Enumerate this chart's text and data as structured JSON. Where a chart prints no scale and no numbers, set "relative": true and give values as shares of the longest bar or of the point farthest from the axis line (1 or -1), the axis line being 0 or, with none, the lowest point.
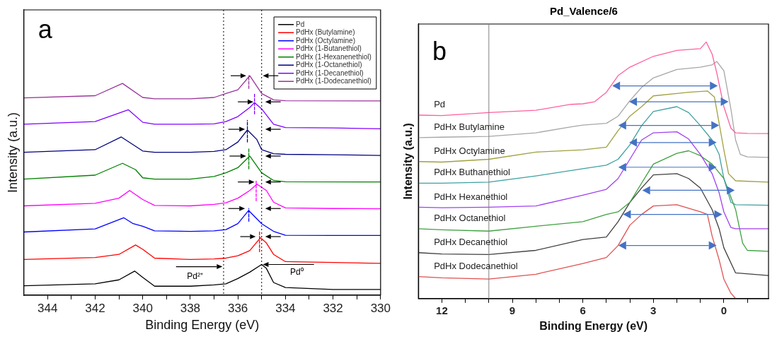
{
  "chart_data": [
    {
      "type": "line",
      "relative": true,
      "xlabel": "Binding Energy (eV)",
      "ylabel": "Intensity (a.u.)",
      "xlim": [
        345,
        330
      ],
      "xticks": [
        344,
        {
          "value": 343,
          "label": null
        },
        342,
        {
          "value": 341,
          "label": null
        },
        340,
        {
          "value": 339,
          "label": null
        },
        338,
        {
          "value": 337,
          "label": null
        },
        336,
        {
          "value": 335,
          "label": null
        },
        334,
        {
          "value": 333,
          "label": null
        },
        332,
        {
          "value": 331,
          "label": null
        },
        330
      ],
      "tick_labels": "x",
      "legend": "top right",
      "annotations": [
        "a",
        "Pd²⁺",
        "Pd⁰"
      ],
      "ref_lines": [
        {
          "axis": "x",
          "value": 336.6,
          "color": "#000000",
          "line_style": "dotted"
        },
        {
          "axis": "x",
          "value": 335,
          "color": "#000000",
          "line_style": "dotted"
        }
      ],
      "series": [
        {
          "name": "Pd",
          "color": "#000000",
          "x": [
            345,
            342,
            341,
            340.34,
            340,
            339.5,
            338,
            337,
            336.5,
            336,
            335.5,
            335,
            334.8,
            334.5,
            334,
            332,
            330
          ],
          "values": [
            0.043,
            0.052,
            0.07,
            0.11,
            0.081,
            0.041,
            0.041,
            0.047,
            0.052,
            0.076,
            0.105,
            0.14,
            0.122,
            0.058,
            0.035,
            0.026,
            0.026
          ]
        },
        {
          "name": "PdHx (Butylamine)",
          "color": "#ff0000",
          "x": [
            345,
            342,
            341,
            340.3,
            340,
            339.5,
            338,
            337,
            336.5,
            336,
            335.5,
            335.05,
            334.8,
            334.5,
            334,
            332,
            330
          ],
          "values": [
            0.163,
            0.172,
            0.186,
            0.229,
            0.209,
            0.169,
            0.163,
            0.165,
            0.169,
            0.18,
            0.203,
            0.262,
            0.238,
            0.186,
            0.153,
            0.149,
            0.145
          ]
        },
        {
          "name": "PdHx (Octylamine)",
          "color": "#0000ff",
          "x": [
            345,
            342,
            340.8,
            340.4,
            340,
            339.5,
            338,
            337,
            336.5,
            336,
            335.55,
            335,
            334.5,
            334,
            332,
            330
          ],
          "values": [
            0.288,
            0.302,
            0.353,
            0.326,
            0.314,
            0.293,
            0.291,
            0.293,
            0.299,
            0.326,
            0.386,
            0.326,
            0.291,
            0.273,
            0.272,
            0.272
          ]
        },
        {
          "name": "PdHx (1-Butanethiol)",
          "color": "#ff00ff",
          "x": [
            345,
            342,
            341,
            340.55,
            340,
            339.5,
            338,
            337,
            336.5,
            336,
            335.5,
            335.2,
            334.8,
            334.5,
            334,
            332,
            330
          ],
          "values": [
            0.407,
            0.419,
            0.442,
            0.477,
            0.436,
            0.409,
            0.407,
            0.414,
            0.421,
            0.442,
            0.477,
            0.506,
            0.477,
            0.424,
            0.398,
            0.395,
            0.394
          ]
        },
        {
          "name": "PdHx (1-Hexanenethiol)",
          "color": "#008000",
          "x": [
            345,
            342,
            340.85,
            340.3,
            340,
            339.5,
            338,
            337,
            336.5,
            336,
            335.5,
            335,
            334.5,
            334,
            330
          ],
          "values": [
            0.529,
            0.547,
            0.601,
            0.572,
            0.535,
            0.529,
            0.529,
            0.541,
            0.558,
            0.581,
            0.634,
            0.558,
            0.523,
            0.517,
            0.516
          ]
        },
        {
          "name": "PdHx (1-Octanethiol)",
          "color": "#000080",
          "x": [
            345,
            342,
            340.9,
            340,
            339.5,
            338,
            337,
            336.5,
            336,
            335.6,
            335.2,
            335,
            334.5,
            334,
            332,
            330
          ],
          "values": [
            0.651,
            0.663,
            0.721,
            0.657,
            0.651,
            0.651,
            0.655,
            0.663,
            0.698,
            0.753,
            0.709,
            0.663,
            0.645,
            0.642,
            0.64,
            0.637
          ]
        },
        {
          "name": "PdHx (1-Decanethiol)",
          "color": "#8000ff",
          "x": [
            345,
            342,
            340.6,
            340,
            339.5,
            338,
            337,
            336.5,
            336,
            335.5,
            335.3,
            335,
            334.5,
            334,
            332,
            330
          ],
          "values": [
            0.779,
            0.791,
            0.845,
            0.788,
            0.779,
            0.779,
            0.781,
            0.791,
            0.814,
            0.855,
            0.878,
            0.849,
            0.779,
            0.764,
            0.762,
            0.758
          ]
        },
        {
          "name": "PdHx (1-Dodecanethiol)",
          "color": "#993399",
          "x": [
            345,
            342,
            340.85,
            340,
            339.5,
            338,
            337,
            336.5,
            336,
            335.5,
            335,
            334.5,
            334,
            330
          ],
          "values": [
            0.899,
            0.909,
            0.965,
            0.901,
            0.895,
            0.895,
            0.901,
            0.919,
            0.936,
            1.0,
            0.919,
            0.89,
            0.886,
            0.885
          ]
        },
        {
          "color": "#ff0000",
          "line_style": "dashed",
          "x": [
            335.09,
            335.09
          ],
          "values": [
            0.198,
            0.29
          ]
        },
        {
          "color": "#0000ff",
          "line_style": "dashed",
          "x": [
            335.54,
            335.54
          ],
          "values": [
            0.337,
            0.395
          ]
        },
        {
          "color": "#ff00ff",
          "line_style": "dashed",
          "x": [
            335.23,
            335.23
          ],
          "values": [
            0.43,
            0.523
          ]
        },
        {
          "color": "#008000",
          "line_style": "dashed",
          "x": [
            335.54,
            335.54
          ],
          "values": [
            0.576,
            0.669
          ]
        },
        {
          "color": "#000080",
          "line_style": "dashed",
          "x": [
            335.6,
            335.6
          ],
          "values": [
            0.698,
            0.797
          ]
        },
        {
          "color": "#8000ff",
          "line_style": "dashed",
          "x": [
            335.3,
            335.3
          ],
          "values": [
            0.826,
            0.921
          ]
        },
        {
          "color": "#993399",
          "line_style": "dashed",
          "x": [
            335.54,
            335.54
          ],
          "values": [
            0.942,
            1.0
          ]
        }
      ]
    },
    {
      "type": "line",
      "relative": true,
      "title": "Pd_Valence/6",
      "xlabel": "Binding Energy (eV)",
      "ylabel": "Intensity (a.u.)",
      "xlim": [
        13,
        -1.9
      ],
      "xticks": [
        12,
        {
          "value": 11,
          "label": null
        },
        {
          "value": 10,
          "label": null
        },
        9,
        {
          "value": 8,
          "label": null
        },
        {
          "value": 7,
          "label": null
        },
        6,
        {
          "value": 5,
          "label": null
        },
        {
          "value": 4,
          "label": null
        },
        3,
        {
          "value": 2,
          "label": null
        },
        {
          "value": 1,
          "label": null
        },
        0,
        {
          "value": -1,
          "label": null
        }
      ],
      "tick_labels": "x",
      "annotations": [
        "b"
      ],
      "ref_lines": [
        {
          "axis": "x",
          "value": 10,
          "color": "#808080"
        }
      ],
      "series": [
        {
          "name": "Pd",
          "color": "#ff5fa0",
          "x": [
            13,
            12,
            10,
            8,
            6.5,
            6,
            5.5,
            5,
            4.5,
            4,
            3,
            2,
            1,
            0.75,
            0.5,
            0.3,
            0,
            -0.3,
            -0.5,
            -1,
            -1.9
          ],
          "values": [
            0.715,
            0.713,
            0.725,
            0.734,
            0.757,
            0.759,
            0.767,
            0.804,
            0.869,
            0.902,
            0.944,
            0.967,
            0.974,
            1.0,
            0.953,
            0.879,
            0.748,
            0.664,
            0.646,
            0.644,
            0.643
          ]
        },
        {
          "name": "PdHx Butylamine",
          "color": "#a6a6a6",
          "x": [
            13,
            12,
            10,
            8,
            6.5,
            6,
            5,
            4.5,
            4,
            3.5,
            3,
            2,
            1,
            0.5,
            0.3,
            0,
            -0.3,
            -0.5,
            -0.7,
            -1,
            -1.9
          ],
          "values": [
            0.627,
            0.629,
            0.632,
            0.646,
            0.669,
            0.676,
            0.683,
            0.711,
            0.771,
            0.823,
            0.86,
            0.893,
            0.902,
            0.911,
            0.924,
            0.888,
            0.739,
            0.618,
            0.562,
            0.552,
            0.55
          ]
        },
        {
          "name": "PdHx Octylamine",
          "color": "#a0a040",
          "x": [
            13,
            12,
            10,
            8,
            6,
            5,
            4.5,
            4,
            3.5,
            3,
            2,
            1.5,
            0.7,
            0.4,
            0,
            -0.2,
            -0.5,
            -1.9
          ],
          "values": [
            0.534,
            0.532,
            0.543,
            0.571,
            0.58,
            0.59,
            0.655,
            0.711,
            0.748,
            0.79,
            0.799,
            0.804,
            0.809,
            0.785,
            0.58,
            0.487,
            0.459,
            0.454
          ]
        },
        {
          "name": "PdHx Buthanethiol",
          "color": "#3fa0a0",
          "x": [
            13,
            12,
            10,
            8,
            6,
            5,
            4.5,
            4,
            3.5,
            3,
            2,
            1.5,
            1,
            0.5,
            0.2,
            0,
            -0.3,
            -0.5,
            -1.9
          ],
          "values": [
            0.45,
            0.45,
            0.454,
            0.478,
            0.506,
            0.52,
            0.543,
            0.599,
            0.674,
            0.729,
            0.748,
            0.725,
            0.674,
            0.618,
            0.562,
            0.468,
            0.375,
            0.366,
            0.364
          ]
        },
        {
          "name": "PdHx Hexanethiol",
          "color": "#a040f0",
          "x": [
            13,
            12,
            10,
            8,
            6,
            5,
            4.5,
            4,
            3.5,
            3,
            2,
            1.5,
            1,
            0.5,
            0.2,
            0,
            -0.3,
            -0.5,
            -1.9
          ],
          "values": [
            0.356,
            0.354,
            0.356,
            0.361,
            0.403,
            0.426,
            0.468,
            0.543,
            0.618,
            0.646,
            0.65,
            0.622,
            0.562,
            0.487,
            0.412,
            0.338,
            0.277,
            0.272,
            0.272
          ]
        },
        {
          "name": "PdHx Octanethiol",
          "color": "#40a040",
          "x": [
            13,
            12,
            10,
            8,
            6,
            5,
            4.5,
            4,
            3.5,
            3,
            2,
            1.5,
            1,
            0.5,
            0,
            -0.5,
            -0.8,
            -1,
            -1.9
          ],
          "values": [
            0.272,
            0.268,
            0.263,
            0.282,
            0.3,
            0.328,
            0.338,
            0.375,
            0.45,
            0.524,
            0.566,
            0.576,
            0.557,
            0.524,
            0.468,
            0.347,
            0.216,
            0.188,
            0.184
          ]
        },
        {
          "name": "PdHx Decanethiol",
          "color": "#404040",
          "x": [
            13,
            12,
            10,
            8,
            6,
            5,
            4.5,
            4,
            3.5,
            3,
            2,
            1.5,
            1,
            0.5,
            0.2,
            0,
            -0.5,
            -1.9
          ],
          "values": [
            0.179,
            0.174,
            0.172,
            0.188,
            0.23,
            0.24,
            0.3,
            0.375,
            0.431,
            0.482,
            0.487,
            0.468,
            0.431,
            0.347,
            0.272,
            0.198,
            0.1,
            0.09
          ]
        },
        {
          "name": "PdHx Dodecanethiol",
          "color": "#e05050",
          "x": [
            13,
            12,
            10,
            8,
            6,
            5,
            4.5,
            4,
            3.5,
            3,
            2,
            1,
            0.7,
            0.5,
            0.2,
            0,
            -0.3,
            -0.5
          ],
          "values": [
            0.086,
            0.081,
            0.076,
            0.095,
            0.137,
            0.16,
            0.207,
            0.286,
            0.328,
            0.361,
            0.366,
            0.338,
            0.328,
            0.244,
            0.151,
            0.076,
            0.021,
            0.0
          ]
        }
      ]
    }
  ]
}
